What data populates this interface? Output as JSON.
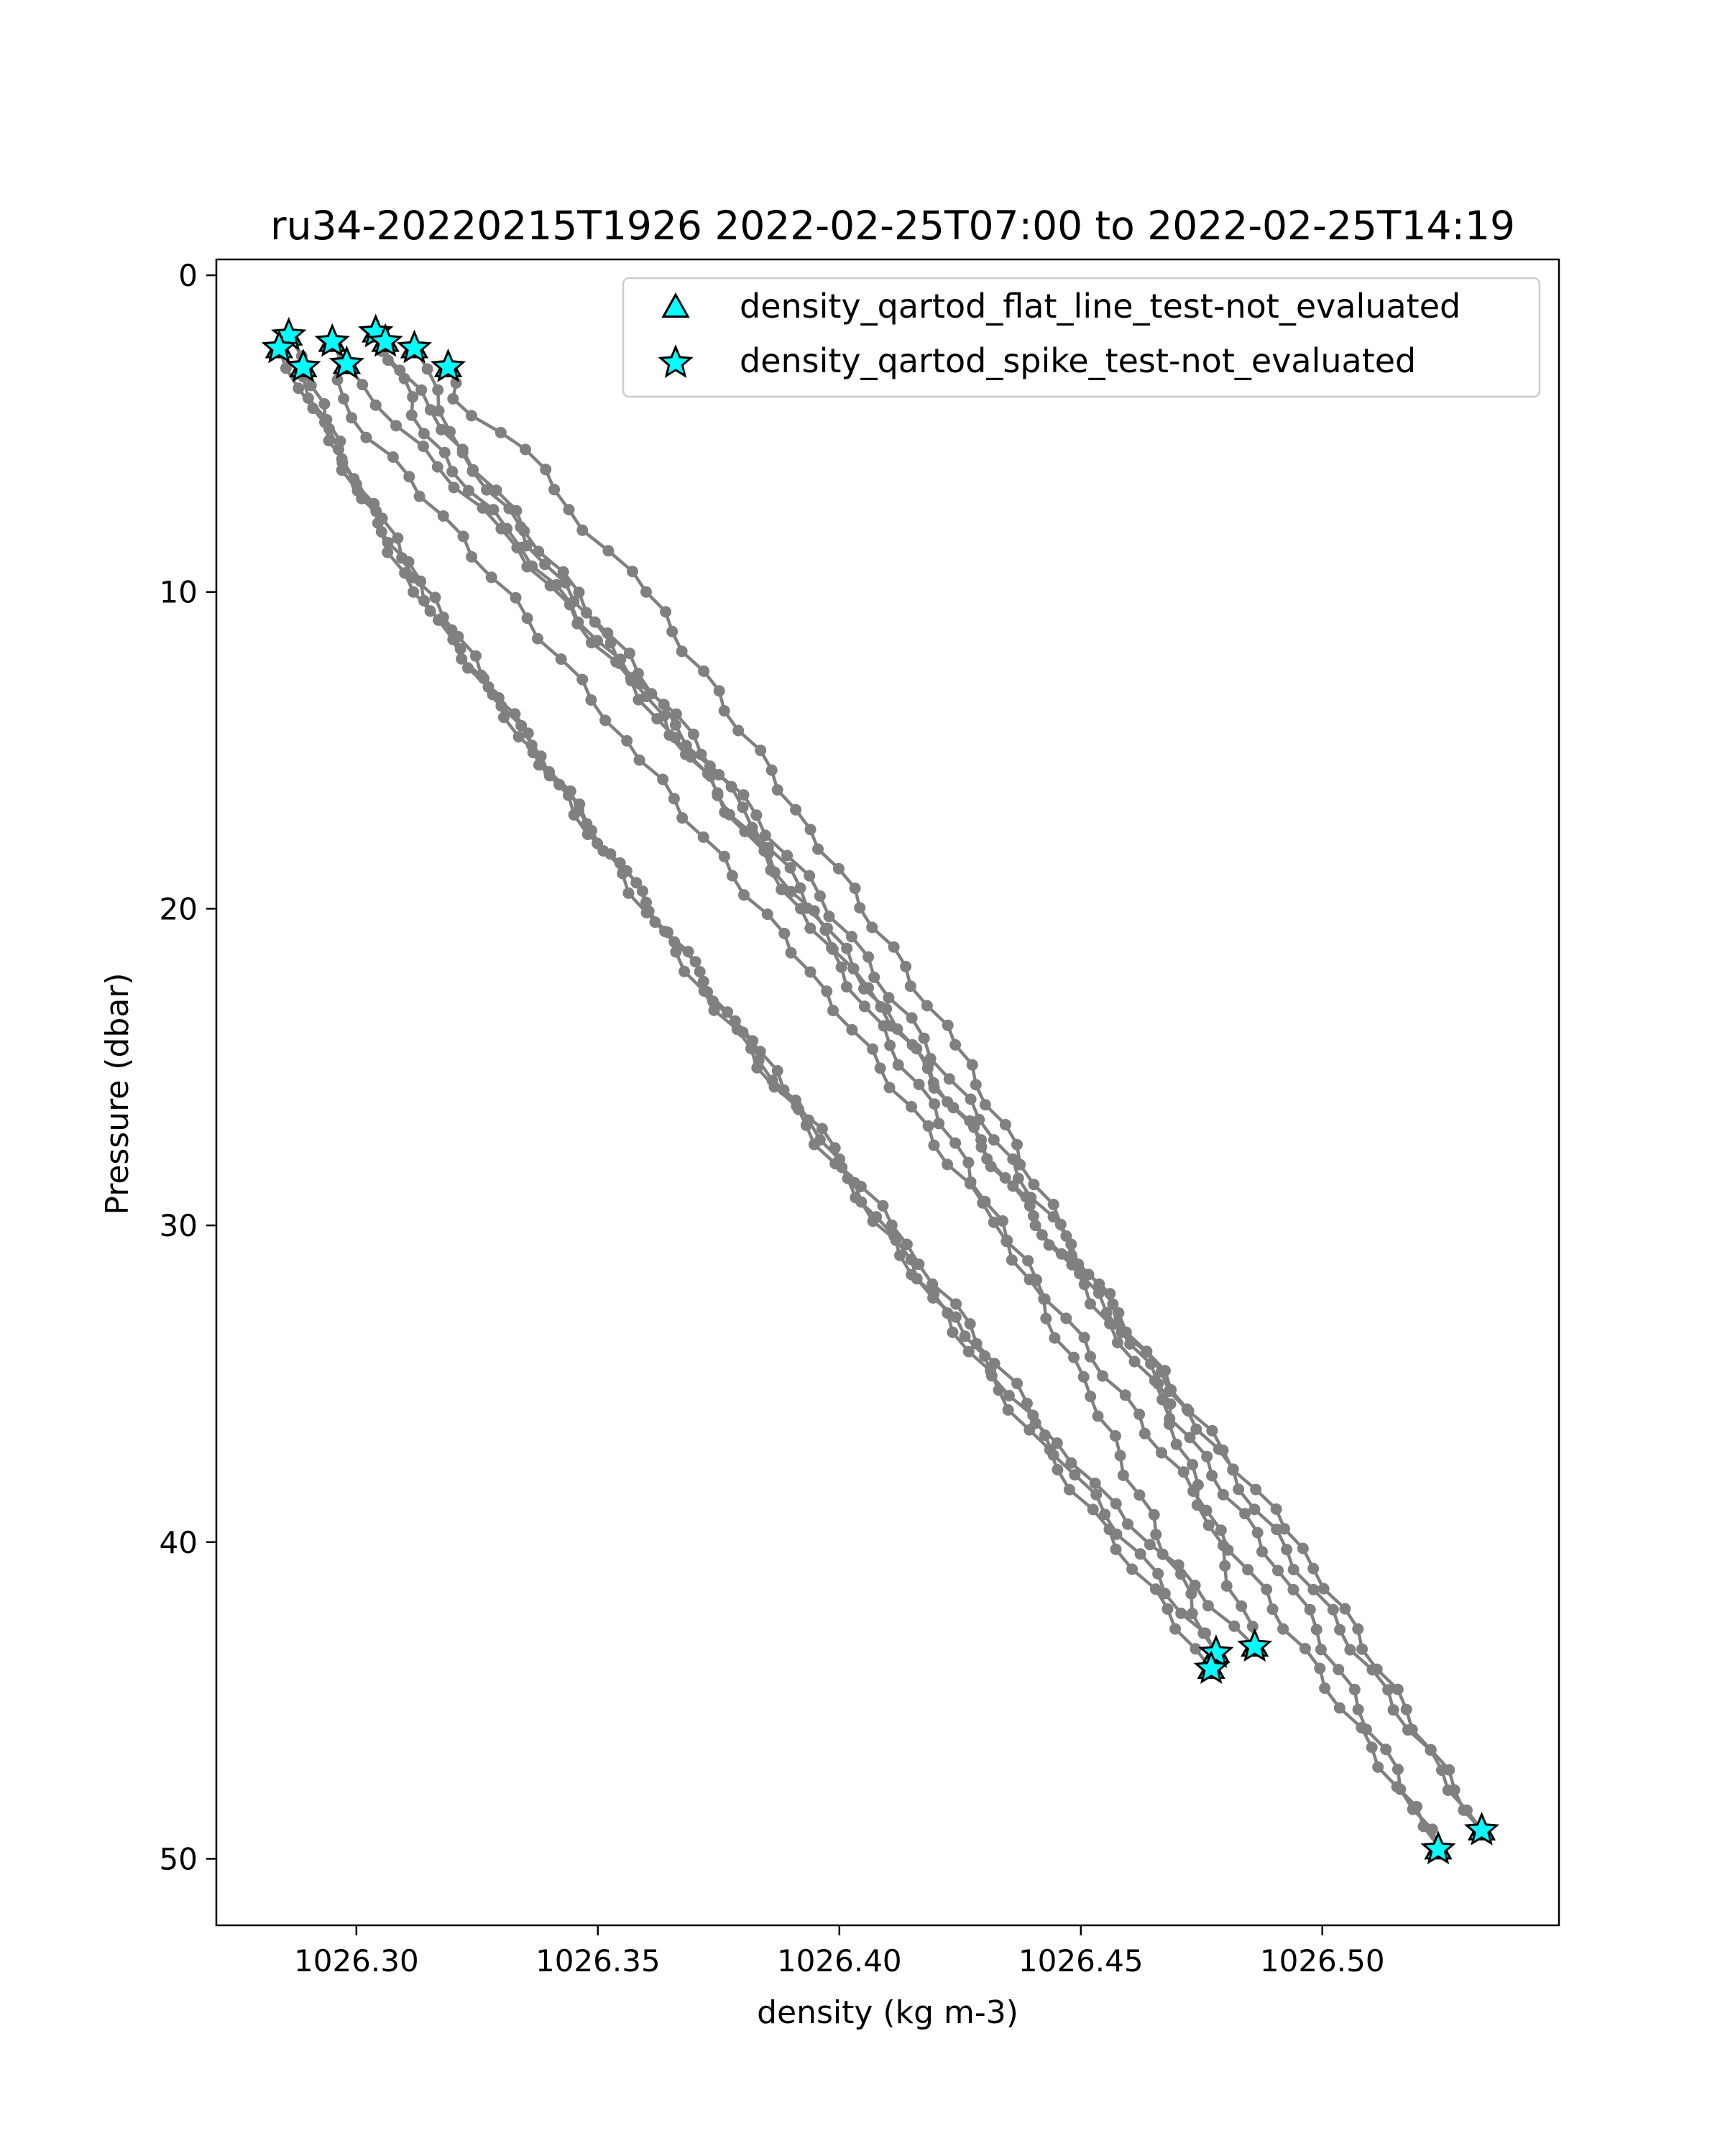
{
  "chart_data": {
    "type": "line",
    "title": "ru34-20220215T1926 2022-02-25T07:00 to 2022-02-25T14:19",
    "xlabel": "density (kg m-3)",
    "ylabel": "Pressure (dbar)",
    "xlim": [
      1026.271,
      1026.549
    ],
    "ylim": [
      52.1,
      -0.5
    ],
    "y_inverted": true,
    "grid": false,
    "legend_position": "upper right",
    "xticks": [
      1026.3,
      1026.35,
      1026.4,
      1026.45,
      1026.5
    ],
    "xtick_labels": [
      "1026.30",
      "1026.35",
      "1026.40",
      "1026.45",
      "1026.50"
    ],
    "yticks": [
      0,
      10,
      20,
      30,
      40,
      50
    ],
    "ytick_labels": [
      "0",
      "10",
      "20",
      "30",
      "40",
      "50"
    ],
    "colors": {
      "profile_line": "#808080",
      "marker_fill": "#00ffff",
      "marker_edge": "#000000",
      "frame": "#000000"
    },
    "legend": [
      {
        "label": "density_qartod_flat_line_test-not_evaluated",
        "marker": "triangle"
      },
      {
        "label": "density_qartod_spike_test-not_evaluated",
        "marker": "star"
      }
    ],
    "series": [
      {
        "start": [
          1026.286,
          1.9
        ],
        "end": [
          1026.478,
          43.5
        ],
        "knots": [
          [
            1026.289,
            3.2
          ],
          [
            1026.3,
            6.6
          ],
          [
            1026.32,
            11.5
          ],
          [
            1026.34,
            15.8
          ],
          [
            1026.372,
            22.6
          ],
          [
            1026.426,
            33.5
          ],
          [
            1026.478,
            43.5
          ]
        ]
      },
      {
        "start": [
          1026.284,
          2.3
        ],
        "end": [
          1026.477,
          44.0
        ],
        "knots": [
          [
            1026.291,
            4.2
          ],
          [
            1026.31,
            9.4
          ],
          [
            1026.33,
            13.6
          ],
          [
            1026.36,
            19.8
          ],
          [
            1026.396,
            27.3
          ],
          [
            1026.433,
            35.2
          ],
          [
            1026.477,
            44.0
          ]
        ]
      },
      {
        "start": [
          1026.289,
          2.9
        ],
        "end": [
          1026.486,
          43.3
        ],
        "knots": [
          [
            1026.297,
            5.8
          ],
          [
            1026.318,
            10.8
          ],
          [
            1026.346,
            16.9
          ],
          [
            1026.38,
            23.9
          ],
          [
            1026.414,
            30.6
          ],
          [
            1026.448,
            37.5
          ],
          [
            1026.486,
            43.3
          ]
        ]
      },
      {
        "start": [
          1026.295,
          2.1
        ],
        "end": [
          1026.524,
          49.6
        ],
        "knots": [
          [
            1026.299,
            4.5
          ],
          [
            1026.318,
            7.6
          ],
          [
            1026.356,
            14.7
          ],
          [
            1026.394,
            22.0
          ],
          [
            1026.432,
            29.9
          ],
          [
            1026.476,
            39.0
          ],
          [
            1026.524,
            49.6
          ]
        ]
      },
      {
        "start": [
          1026.304,
          1.8
        ],
        "end": [
          1026.533,
          49.1
        ],
        "knots": [
          [
            1026.309,
            3.0
          ],
          [
            1026.322,
            5.5
          ],
          [
            1026.352,
            11.3
          ],
          [
            1026.396,
            19.6
          ],
          [
            1026.432,
            27.3
          ],
          [
            1026.472,
            35.8
          ],
          [
            1026.533,
            49.1
          ]
        ]
      },
      {
        "start": [
          1026.312,
          2.3
        ],
        "end": [
          1026.524,
          49.7
        ],
        "knots": [
          [
            1026.322,
            5.6
          ],
          [
            1026.345,
            10.3
          ],
          [
            1026.38,
            16.8
          ],
          [
            1026.412,
            23.8
          ],
          [
            1026.456,
            33.1
          ],
          [
            1026.494,
            41.5
          ],
          [
            1026.524,
            49.7
          ]
        ]
      },
      {
        "start": [
          1026.298,
          2.8
        ],
        "end": [
          1026.533,
          49.1
        ],
        "knots": [
          [
            1026.304,
            4.1
          ],
          [
            1026.33,
            8.0
          ],
          [
            1026.366,
            14.6
          ],
          [
            1026.406,
            22.5
          ],
          [
            1026.446,
            30.9
          ],
          [
            1026.496,
            40.2
          ],
          [
            1026.533,
            49.1
          ]
        ]
      },
      {
        "start": [
          1026.306,
          2.1
        ],
        "end": [
          1026.478,
          43.5
        ],
        "knots": [
          [
            1026.314,
            5.0
          ],
          [
            1026.334,
            8.6
          ],
          [
            1026.36,
            13.3
          ],
          [
            1026.392,
            20.0
          ],
          [
            1026.424,
            27.4
          ],
          [
            1026.452,
            35.4
          ],
          [
            1026.478,
            43.5
          ]
        ]
      },
      {
        "start": [
          1026.319,
          2.9
        ],
        "end": [
          1026.486,
          43.3
        ],
        "knots": [
          [
            1026.32,
            3.9
          ],
          [
            1026.335,
            5.5
          ],
          [
            1026.344,
            7.4
          ],
          [
            1026.36,
            10.0
          ],
          [
            1026.394,
            17.5
          ],
          [
            1026.424,
            24.3
          ],
          [
            1026.448,
            30.6
          ],
          [
            1026.466,
            35.0
          ],
          [
            1026.486,
            43.3
          ]
        ]
      }
    ],
    "flagged_points": [
      [
        1026.286,
        1.9
      ],
      [
        1026.284,
        2.3
      ],
      [
        1026.289,
        2.9
      ],
      [
        1026.295,
        2.1
      ],
      [
        1026.298,
        2.8
      ],
      [
        1026.304,
        1.8
      ],
      [
        1026.306,
        2.1
      ],
      [
        1026.312,
        2.3
      ],
      [
        1026.319,
        2.9
      ],
      [
        1026.478,
        43.5
      ],
      [
        1026.477,
        44.0
      ],
      [
        1026.486,
        43.3
      ],
      [
        1026.533,
        49.1
      ],
      [
        1026.524,
        49.7
      ]
    ]
  }
}
